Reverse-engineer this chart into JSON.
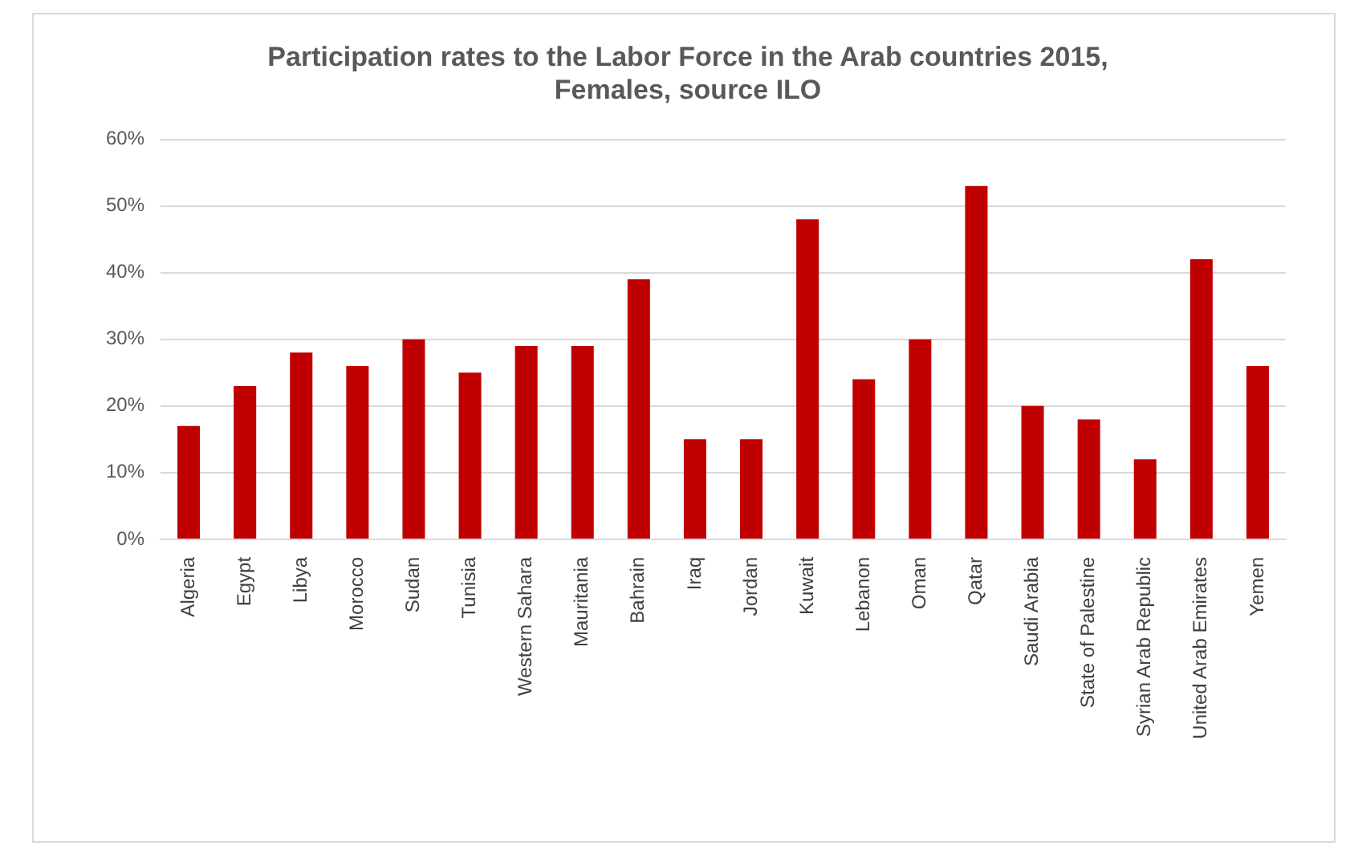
{
  "chart_data": {
    "type": "bar",
    "title": "Participation rates to the Labor Force in the Arab countries 2015, Females, source ILO",
    "categories": [
      "Algeria",
      "Egypt",
      "Libya",
      "Morocco",
      "Sudan",
      "Tunisia",
      "Western Sahara",
      "Mauritania",
      "Bahrain",
      "Iraq",
      "Jordan",
      "Kuwait",
      "Lebanon",
      "Oman",
      "Qatar",
      "Saudi Arabia",
      "State of Palestine",
      "Syrian Arab Republic",
      "United Arab Emirates",
      "Yemen"
    ],
    "values": [
      17,
      23,
      28,
      26,
      30,
      25,
      29,
      29,
      39,
      15,
      15,
      48,
      24,
      30,
      53,
      20,
      18,
      12,
      42,
      26
    ],
    "color": "#c00000",
    "ylim": [
      0,
      60
    ],
    "yticks": [
      {
        "value": 0,
        "label": "0%"
      },
      {
        "value": 10,
        "label": "10%"
      },
      {
        "value": 20,
        "label": "20%"
      },
      {
        "value": 30,
        "label": "30%"
      },
      {
        "value": 40,
        "label": "40%"
      },
      {
        "value": 50,
        "label": "50%"
      },
      {
        "value": 60,
        "label": "60%"
      }
    ],
    "grid": "y",
    "legend": false
  }
}
